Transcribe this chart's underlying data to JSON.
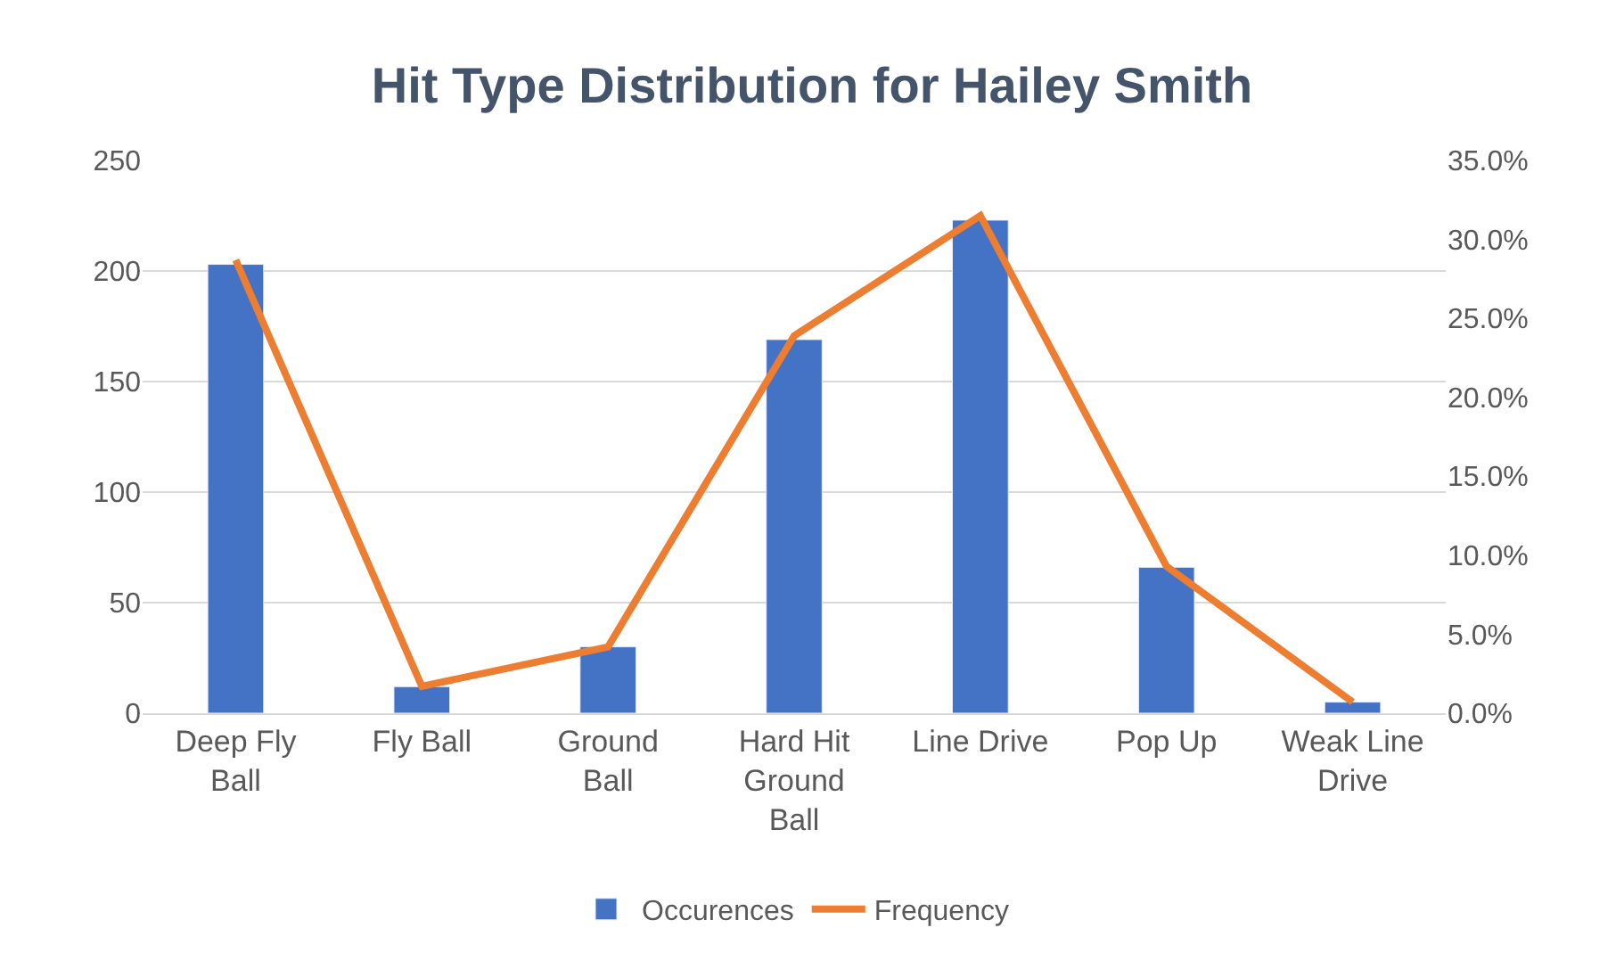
{
  "chart_data": {
    "type": "bar",
    "title": "Hit Type Distribution for Hailey Smith",
    "categories": [
      "Deep Fly Ball",
      "Fly Ball",
      "Ground Ball",
      "Hard Hit Ground Ball",
      "Line Drive",
      "Pop Up",
      "Weak Line Drive"
    ],
    "series": [
      {
        "name": "Occurences",
        "color": "#4472c4",
        "values": [
          203,
          12,
          30,
          169,
          223,
          66,
          5
        ]
      },
      {
        "name": "Frequency",
        "type": "line",
        "axis": "y2",
        "color": "#ed7d31",
        "values": [
          28.7,
          1.7,
          4.2,
          23.9,
          31.5,
          9.3,
          0.7
        ]
      }
    ],
    "ylim": [
      0,
      250
    ],
    "yticks": [
      0,
      50,
      100,
      150,
      200,
      250
    ],
    "y2lim": [
      0,
      35
    ],
    "y2ticks": [
      {
        "value": 0,
        "label": "0.0%"
      },
      {
        "value": 5,
        "label": "5.0%"
      },
      {
        "value": 10,
        "label": "10.0%"
      },
      {
        "value": 15,
        "label": "15.0%"
      },
      {
        "value": 20,
        "label": "20.0%"
      },
      {
        "value": 25,
        "label": "25.0%"
      },
      {
        "value": 30,
        "label": "30.0%"
      },
      {
        "value": 35,
        "label": "35.0%"
      }
    ],
    "grid": "y",
    "legend": "bottom",
    "marker": "none"
  }
}
